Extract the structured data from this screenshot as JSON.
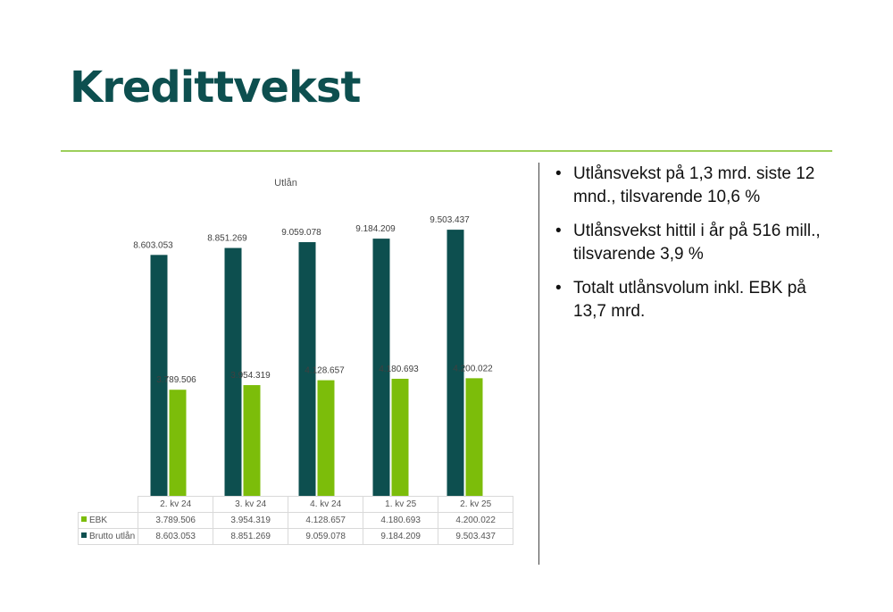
{
  "page": {
    "title": "Kredittvekst"
  },
  "bullets": [
    "Utlånsvekst på 1,3 mrd. siste 12 mnd., tilsvarende 10,6 %",
    "Utlånsvekst hittil i år på 516 mill., tilsvarende 3,9 %",
    "Totalt utlånsvolum inkl. EBK på 13,7 mrd."
  ],
  "colors": {
    "title": "#0d4f4f",
    "brutto": "#0d4f4f",
    "ebk": "#7cbd0a",
    "rule": "#9ccf5a"
  },
  "chart_data": {
    "type": "bar",
    "title": "Utlån",
    "categories": [
      "2. kv 24",
      "3. kv 24",
      "4. kv 24",
      "1. kv 25",
      "2. kv 25"
    ],
    "series": [
      {
        "name": "Brutto utlån",
        "values": [
          8603053,
          8851269,
          9059078,
          9184209,
          9503437
        ],
        "labels": [
          "8.603.053",
          "8.851.269",
          "9.059.078",
          "9.184.209",
          "9.503.437"
        ],
        "color": "#0d4f4f"
      },
      {
        "name": "EBK",
        "values": [
          3789506,
          3954319,
          4128657,
          4180693,
          4200022
        ],
        "labels": [
          "3.789.506",
          "3.954.319",
          "4.128.657",
          "4.180.693",
          "4.200.022"
        ],
        "color": "#7cbd0a"
      }
    ],
    "ylim": [
      0,
      10400000
    ],
    "data_table": true,
    "grid": false,
    "legend": "data-table"
  }
}
